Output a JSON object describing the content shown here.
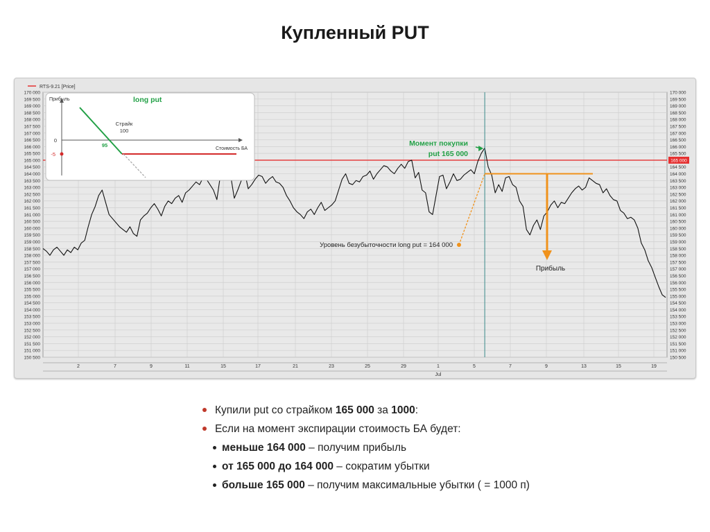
{
  "slide": {
    "title": "Купленный PUT"
  },
  "chart_data": {
    "type": "line",
    "legend": "RTS-9.21 [Price]",
    "ylim": [
      150500,
      170000
    ],
    "y_ticks": [
      "170 000",
      "169 500",
      "169 000",
      "168 500",
      "168 000",
      "167 500",
      "167 000",
      "166 500",
      "166 000",
      "165 500",
      "165 000",
      "164 500",
      "164 000",
      "163 500",
      "163 000",
      "162 500",
      "162 000",
      "161 500",
      "161 000",
      "160 500",
      "160 000",
      "159 500",
      "159 000",
      "158 500",
      "158 000",
      "157 500",
      "157 000",
      "156 500",
      "156 000",
      "155 500",
      "155 000",
      "154 500",
      "154 000",
      "153 500",
      "153 000",
      "152 500",
      "152 000",
      "151 500",
      "151 000",
      "150 500"
    ],
    "x_ticks": [
      "2",
      "7",
      "9",
      "11",
      "15",
      "17",
      "21",
      "23",
      "25",
      "29",
      "1",
      "5",
      "7",
      "9",
      "13",
      "15",
      "19"
    ],
    "x_month": "Jul",
    "price_marker": "165 000",
    "series": [
      {
        "name": "RTS-9.21",
        "values": [
          158500,
          158300,
          158000,
          158400,
          158600,
          158300,
          158000,
          158400,
          158200,
          158600,
          158400,
          158900,
          159100,
          160100,
          161000,
          161600,
          162400,
          162800,
          161900,
          161000,
          160700,
          160400,
          160100,
          159900,
          159700,
          160100,
          159600,
          159400,
          160600,
          160900,
          161100,
          161500,
          161800,
          161400,
          160900,
          161600,
          162000,
          161800,
          162200,
          162400,
          161900,
          162600,
          162800,
          163100,
          163400,
          163200,
          163700,
          163600,
          163200,
          162800,
          162100,
          163900,
          164200,
          164000,
          163800,
          162200,
          162800,
          163500,
          164100,
          162900,
          163200,
          163600,
          163900,
          163800,
          163300,
          163600,
          163800,
          163400,
          163300,
          163000,
          162400,
          162000,
          161500,
          161200,
          161000,
          160700,
          161200,
          161400,
          161000,
          161500,
          161900,
          161300,
          161500,
          161700,
          162000,
          162800,
          163600,
          164000,
          163300,
          163200,
          163500,
          163400,
          163800,
          163900,
          164200,
          163600,
          164000,
          164300,
          164600,
          164500,
          164200,
          164000,
          164400,
          164700,
          164400,
          164900,
          165000,
          163700,
          164100,
          162800,
          162600,
          161200,
          161000,
          162400,
          163800,
          163900,
          162900,
          163400,
          164000,
          163500,
          163600,
          163900,
          164100,
          164300,
          164000,
          164900,
          165500,
          165900,
          164500,
          163900,
          162600,
          163200,
          162700,
          163700,
          163800,
          163200,
          163000,
          162000,
          161600,
          159900,
          159500,
          160200,
          160600,
          159900,
          160900,
          161200,
          161700,
          162000,
          161500,
          161900,
          161800,
          162200,
          162600,
          162900,
          163100,
          162800,
          163000,
          163700,
          163500,
          163300,
          163200,
          162600,
          162900,
          162400,
          162100,
          162000,
          161300,
          161100,
          160700,
          160800,
          160600,
          160000,
          158900,
          158400,
          157600,
          157100,
          156400,
          155700,
          155100,
          154900
        ]
      }
    ],
    "purchase_annotation": {
      "line1": "Момент покупки",
      "line2": "put 165 000"
    },
    "breakeven_annotation": "Уровень безубыточности long put = 164 000",
    "profit_annotation": "Прибыль",
    "purchase_level": 165000,
    "breakeven_level": 164000,
    "inset": {
      "title": "long put",
      "y_label": "Прибыль",
      "x_label": "Стоимость БА",
      "strike_label": "Страйк",
      "strike_value": "100",
      "zero_label": "0",
      "premium_label": "-5",
      "breakeven_label": "95"
    }
  },
  "bullets": [
    {
      "level": 1,
      "parts": [
        {
          "t": "Купили put со страйком ",
          "b": false
        },
        {
          "t": "165 000",
          "b": true
        },
        {
          "t": " за ",
          "b": false
        },
        {
          "t": "1000",
          "b": true
        },
        {
          "t": ":",
          "b": false
        }
      ]
    },
    {
      "level": 1,
      "parts": [
        {
          "t": "Если на момент экспирации стоимость БА будет:",
          "b": false
        }
      ]
    },
    {
      "level": 2,
      "parts": [
        {
          "t": "меньше 164 000",
          "b": true
        },
        {
          "t": " – получим прибыль",
          "b": false
        }
      ]
    },
    {
      "level": 2,
      "parts": [
        {
          "t": "от 165 000 до 164 000",
          "b": true
        },
        {
          "t": " – сократим убытки",
          "b": false
        }
      ]
    },
    {
      "level": 2,
      "parts": [
        {
          "t": "больше 165 000",
          "b": true
        },
        {
          "t": " – получим максимальные убытки ( = 1000 п)",
          "b": false
        }
      ]
    }
  ],
  "colors": {
    "price_line": "#111111",
    "purchase_line": "#e53030",
    "breakeven": "#f0921c",
    "green": "#22a046",
    "inset_red": "#d42a2a",
    "vertical_marker": "#3a8a8a"
  }
}
